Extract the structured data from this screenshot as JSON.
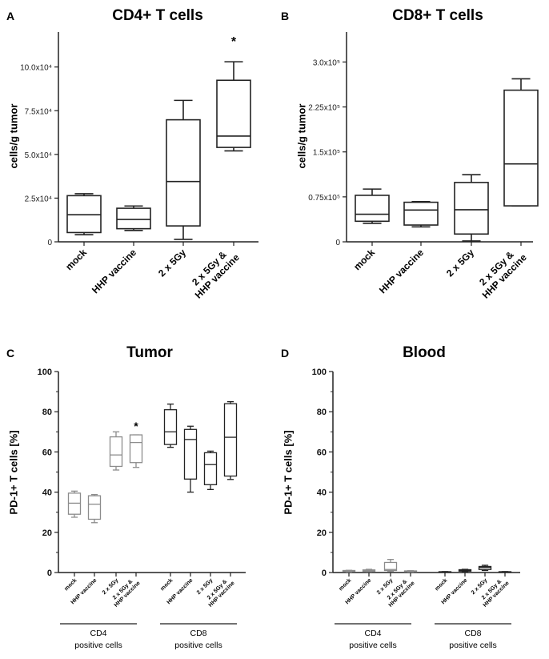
{
  "chart_data": [
    {
      "type": "box",
      "panel": "A",
      "title": "CD4+ T cells",
      "ylabel": "cells/g tumor",
      "ylim": [
        0,
        120000
      ],
      "yticks": [
        0,
        25000,
        50000,
        75000,
        100000
      ],
      "ytick_labels": [
        "0",
        "2.5x10⁴",
        "5.0x10⁴",
        "7.5x10⁴",
        "10.0x10⁴"
      ],
      "categories": [
        [
          "mock"
        ],
        [
          "HHP vaccine"
        ],
        [
          "2 x 5Gy"
        ],
        [
          "2 x 5Gy &",
          "HHP vaccine"
        ]
      ],
      "boxes": [
        {
          "min": 4100,
          "q1": 5300,
          "median": 15500,
          "q3": 26400,
          "max": 27500
        },
        {
          "min": 6500,
          "q1": 7500,
          "median": 12800,
          "q3": 19200,
          "max": 20500
        },
        {
          "min": 1400,
          "q1": 9100,
          "median": 34500,
          "q3": 69800,
          "max": 80900
        },
        {
          "min": 52000,
          "q1": 54000,
          "median": 60500,
          "q3": 92400,
          "max": 103000,
          "annotation": "*"
        }
      ]
    },
    {
      "type": "box",
      "panel": "B",
      "title": "CD8+ T cells",
      "ylabel": "cells/g tumor",
      "ylim": [
        0,
        350000
      ],
      "yticks": [
        0,
        75000,
        150000,
        225000,
        300000
      ],
      "ytick_labels": [
        "0",
        "0.75x10⁵",
        "1.5x10⁵",
        "2.25x10⁵",
        "3.0x10⁵"
      ],
      "categories": [
        [
          "mock"
        ],
        [
          "HHP vaccine"
        ],
        [
          "2 x 5Gy"
        ],
        [
          "2 x 5Gy &",
          "HHP vaccine"
        ]
      ],
      "boxes": [
        {
          "min": 30800,
          "q1": 34300,
          "median": 46000,
          "q3": 77600,
          "max": 88000
        },
        {
          "min": 25000,
          "q1": 28000,
          "median": 53000,
          "q3": 66000,
          "max": 67000
        },
        {
          "min": 1500,
          "q1": 13000,
          "median": 53500,
          "q3": 99000,
          "max": 112000
        },
        {
          "min": 60000,
          "q1": 60000,
          "median": 130000,
          "q3": 253000,
          "max": 272000
        }
      ]
    },
    {
      "type": "box",
      "panel": "C",
      "title": "Tumor",
      "ylabel": "PD-1+ T cells [%]",
      "ylim": [
        0,
        100
      ],
      "yticks": [
        0,
        20,
        40,
        60,
        80,
        100
      ],
      "ytick_labels": [
        "0",
        "20",
        "40",
        "60",
        "80",
        "100"
      ],
      "categories": [
        [
          "mock"
        ],
        [
          "HHP vaccine"
        ],
        [
          "2 x 5Gy"
        ],
        [
          "2 x 5Gy &",
          "HHP vaccine"
        ],
        [
          "mock"
        ],
        [
          "HHP vaccine"
        ],
        [
          "2 x 5Gy"
        ],
        [
          "2 x 5Gy &",
          "HHP vaccine"
        ]
      ],
      "groups": [
        {
          "label": [
            "CD4",
            "positive cells"
          ],
          "color": "#8c8c8c"
        },
        {
          "label": [
            "CD8",
            "positive cells"
          ],
          "color": "#222222"
        }
      ],
      "boxes": [
        {
          "min": 27.5,
          "q1": 29,
          "median": 34.5,
          "q3": 39.5,
          "max": 40.5
        },
        {
          "min": 24.8,
          "q1": 26.5,
          "median": 34,
          "q3": 38.2,
          "max": 38.8
        },
        {
          "min": 51,
          "q1": 52.8,
          "median": 58.5,
          "q3": 67.5,
          "max": 70
        },
        {
          "min": 52.3,
          "q1": 54.7,
          "median": 64.7,
          "q3": 68.5,
          "max": 68.5,
          "annotation": "*"
        },
        {
          "min": 62.3,
          "q1": 63.7,
          "median": 70,
          "q3": 81,
          "max": 83.8
        },
        {
          "min": 40,
          "q1": 46.5,
          "median": 66.2,
          "q3": 71.2,
          "max": 72.8
        },
        {
          "min": 41.3,
          "q1": 43.7,
          "median": 53.7,
          "q3": 59.6,
          "max": 60.4
        },
        {
          "min": 46.3,
          "q1": 48,
          "median": 67.3,
          "q3": 84,
          "max": 85
        }
      ]
    },
    {
      "type": "box",
      "panel": "D",
      "title": "Blood",
      "ylabel": "PD-1+ T cells [%]",
      "ylim": [
        0,
        100
      ],
      "yticks": [
        0,
        20,
        40,
        60,
        80,
        100
      ],
      "ytick_labels": [
        "0",
        "20",
        "40",
        "60",
        "80",
        "100"
      ],
      "categories": [
        [
          "mock"
        ],
        [
          "HHP vaccine"
        ],
        [
          "2 x 5Gy"
        ],
        [
          "2 x 5Gy &",
          "HHP vaccine"
        ],
        [
          "mock"
        ],
        [
          "HHP vaccine"
        ],
        [
          "2 x 5Gy"
        ],
        [
          "2 x 5Gy &",
          "HHP vaccine"
        ]
      ],
      "groups": [
        {
          "label": [
            "CD4",
            "positive cells"
          ],
          "color": "#8c8c8c"
        },
        {
          "label": [
            "CD8",
            "positive cells"
          ],
          "color": "#222222"
        }
      ],
      "boxes": [
        {
          "min": 0.3,
          "q1": 0.5,
          "median": 0.8,
          "q3": 1.0,
          "max": 1.1
        },
        {
          "min": 0.4,
          "q1": 0.6,
          "median": 1.0,
          "q3": 1.3,
          "max": 1.6
        },
        {
          "min": 0.5,
          "q1": 1.0,
          "median": 1.5,
          "q3": 5.0,
          "max": 6.5
        },
        {
          "min": 0.3,
          "q1": 0.4,
          "median": 0.6,
          "q3": 0.8,
          "max": 0.9
        },
        {
          "min": 0.2,
          "q1": 0.25,
          "median": 0.3,
          "q3": 0.4,
          "max": 0.45
        },
        {
          "min": 0.5,
          "q1": 0.7,
          "median": 1.0,
          "q3": 1.4,
          "max": 1.6
        },
        {
          "min": 1.0,
          "q1": 1.5,
          "median": 2.5,
          "q3": 3.0,
          "max": 3.6
        },
        {
          "min": 0.2,
          "q1": 0.25,
          "median": 0.3,
          "q3": 0.4,
          "max": 0.45
        }
      ]
    }
  ]
}
